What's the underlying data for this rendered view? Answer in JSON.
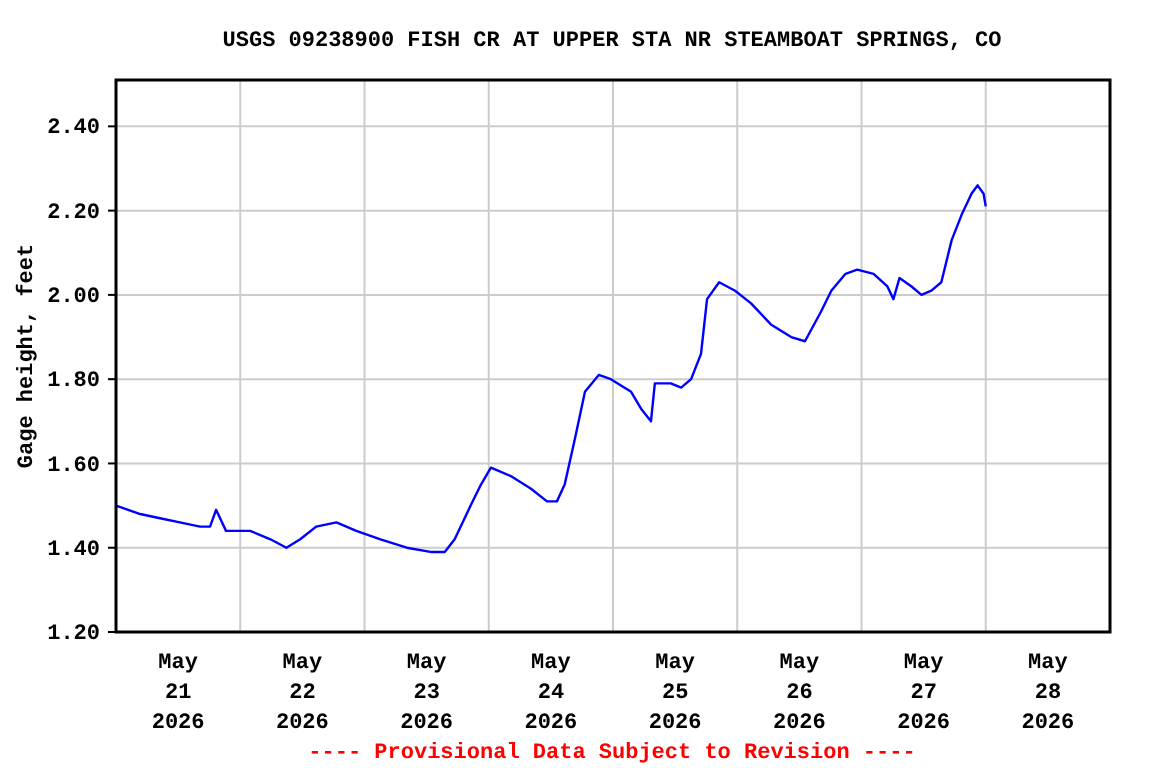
{
  "chart_data": {
    "type": "line",
    "title": "USGS 09238900 FISH CR AT UPPER STA NR STEAMBOAT SPRINGS, CO",
    "ylabel": "Gage height, feet",
    "annotations": [
      "---- Provisional Data Subject to Revision ----"
    ],
    "xlim": [
      "2026-05-21T00:00",
      "2026-05-29T00:00"
    ],
    "xticks": [
      {
        "value": "2026-05-21T12:00",
        "label": "May 21 2026"
      },
      {
        "value": "2026-05-22T12:00",
        "label": "May 22 2026"
      },
      {
        "value": "2026-05-23T12:00",
        "label": "May 23 2026"
      },
      {
        "value": "2026-05-24T12:00",
        "label": "May 24 2026"
      },
      {
        "value": "2026-05-25T12:00",
        "label": "May 25 2026"
      },
      {
        "value": "2026-05-26T12:00",
        "label": "May 26 2026"
      },
      {
        "value": "2026-05-27T12:00",
        "label": "May 27 2026"
      },
      {
        "value": "2026-05-28T12:00",
        "label": "May 28 2026"
      },
      {
        "value": "2026-05-22T00:00",
        "label": null
      },
      {
        "value": "2026-05-23T00:00",
        "label": null
      },
      {
        "value": "2026-05-24T00:00",
        "label": null
      },
      {
        "value": "2026-05-25T00:00",
        "label": null
      },
      {
        "value": "2026-05-26T00:00",
        "label": null
      },
      {
        "value": "2026-05-27T00:00",
        "label": null
      },
      {
        "value": "2026-05-28T00:00",
        "label": null
      }
    ],
    "ylim": [
      1.2,
      2.51
    ],
    "yticks": [
      {
        "value": 1.2,
        "label": "1.20"
      },
      {
        "value": 1.4,
        "label": "1.40"
      },
      {
        "value": 1.6,
        "label": "1.60"
      },
      {
        "value": 1.8,
        "label": "1.80"
      },
      {
        "value": 2.0,
        "label": "2.00"
      },
      {
        "value": 2.2,
        "label": "2.20"
      },
      {
        "value": 2.4,
        "label": "2.40"
      }
    ],
    "grid": true,
    "marker": "none",
    "line_style": "solid",
    "x": [
      "2026-05-21T00:00",
      "2026-05-21T04:40",
      "2026-05-21T08:30",
      "2026-05-21T12:20",
      "2026-05-21T16:15",
      "2026-05-21T18:10",
      "2026-05-21T19:20",
      "2026-05-21T21:15",
      "2026-05-22T01:55",
      "2026-05-22T05:50",
      "2026-05-22T08:55",
      "2026-05-22T11:35",
      "2026-05-22T14:40",
      "2026-05-22T18:35",
      "2026-05-22T22:25",
      "2026-05-23T03:05",
      "2026-05-23T08:10",
      "2026-05-23T12:45",
      "2026-05-23T15:30",
      "2026-05-23T17:25",
      "2026-05-23T20:30",
      "2026-05-23T22:30",
      "2026-05-24T00:25",
      "2026-05-24T04:15",
      "2026-05-24T08:10",
      "2026-05-24T11:15",
      "2026-05-24T13:10",
      "2026-05-24T14:40",
      "2026-05-24T16:40",
      "2026-05-24T18:35",
      "2026-05-24T21:15",
      "2026-05-24T23:35",
      "2026-05-25T03:30",
      "2026-05-25T05:25",
      "2026-05-25T07:20",
      "2026-05-25T08:05",
      "2026-05-25T11:10",
      "2026-05-25T13:10",
      "2026-05-25T15:05",
      "2026-05-25T17:00",
      "2026-05-25T18:10",
      "2026-05-25T20:30",
      "2026-05-25T23:35",
      "2026-05-26T02:40",
      "2026-05-26T06:30",
      "2026-05-26T10:25",
      "2026-05-26T13:05",
      "2026-05-26T16:10",
      "2026-05-26T18:10",
      "2026-05-26T20:55",
      "2026-05-26T23:10",
      "2026-05-27T02:20",
      "2026-05-27T05:00",
      "2026-05-27T06:10",
      "2026-05-27T07:20",
      "2026-05-27T09:40",
      "2026-05-27T11:35",
      "2026-05-27T13:30",
      "2026-05-27T15:25",
      "2026-05-27T17:25",
      "2026-05-27T19:20",
      "2026-05-27T21:15",
      "2026-05-27T22:25",
      "2026-05-27T23:35",
      "2026-05-28T00:00"
    ],
    "series": [
      {
        "color": "#0000ff",
        "values": [
          1.5,
          1.48,
          1.47,
          1.46,
          1.45,
          1.45,
          1.49,
          1.44,
          1.44,
          1.42,
          1.4,
          1.42,
          1.45,
          1.46,
          1.44,
          1.42,
          1.4,
          1.39,
          1.39,
          1.42,
          1.5,
          1.55,
          1.59,
          1.57,
          1.54,
          1.51,
          1.51,
          1.55,
          1.66,
          1.77,
          1.81,
          1.8,
          1.77,
          1.73,
          1.7,
          1.79,
          1.79,
          1.78,
          1.8,
          1.86,
          1.99,
          2.03,
          2.01,
          1.98,
          1.93,
          1.9,
          1.89,
          1.96,
          2.01,
          2.05,
          2.06,
          2.05,
          2.02,
          1.99,
          2.04,
          2.02,
          2.0,
          2.01,
          2.03,
          2.13,
          2.19,
          2.24,
          2.26,
          2.24,
          2.21
        ]
      }
    ]
  }
}
